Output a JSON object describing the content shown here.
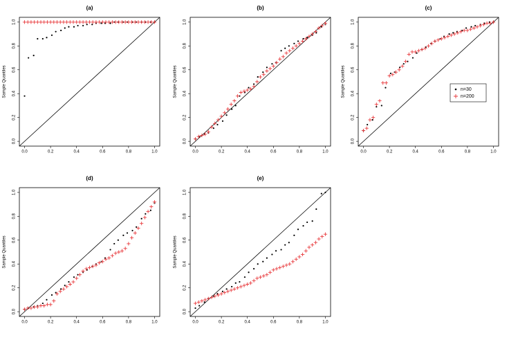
{
  "chart_data": [
    {
      "type": "scatter",
      "title": "(a)",
      "ylabel": "Sample Quantiles",
      "xlim": [
        -0.04,
        1.04
      ],
      "ylim": [
        -0.04,
        1.04
      ],
      "xticks": [
        {
          "value": 0,
          "label": "0.0"
        },
        0.2,
        0.4,
        0.6,
        0.8,
        {
          "value": 1,
          "label": "1.0"
        }
      ],
      "yticks": [
        {
          "value": 0,
          "label": "0.0"
        },
        0.2,
        0.4,
        0.6,
        0.8,
        {
          "value": 1,
          "label": "1.0"
        }
      ],
      "series": [
        {
          "color": "#000000",
          "marker": "dot",
          "x": [
            0.0,
            0.03,
            0.07,
            0.1,
            0.14,
            0.17,
            0.21,
            0.24,
            0.28,
            0.31,
            0.34,
            0.38,
            0.41,
            0.45,
            0.48,
            0.52,
            0.55,
            0.59,
            0.62,
            0.66,
            0.69,
            0.72,
            0.76,
            0.79,
            0.83,
            0.86,
            0.9,
            0.93,
            0.97,
            1.0
          ],
          "values": [
            0.38,
            0.7,
            0.72,
            0.86,
            0.86,
            0.87,
            0.89,
            0.92,
            0.93,
            0.95,
            0.96,
            0.96,
            0.97,
            0.97,
            0.98,
            0.98,
            0.99,
            0.99,
            0.99,
            0.99,
            1.0,
            1.0,
            1.0,
            1.0,
            1.0,
            1.0,
            1.0,
            1.0,
            1.0,
            1.0
          ]
        },
        {
          "color": "#e8383b",
          "marker": "plus",
          "x": [
            0,
            0.025,
            0.05,
            0.075,
            0.1,
            0.125,
            0.15,
            0.175,
            0.2,
            0.225,
            0.25,
            0.275,
            0.3,
            0.325,
            0.35,
            0.375,
            0.4,
            0.425,
            0.45,
            0.475,
            0.5,
            0.525,
            0.55,
            0.575,
            0.6,
            0.625,
            0.65,
            0.675,
            0.7,
            0.725,
            0.75,
            0.775,
            0.8,
            0.825,
            0.85,
            0.875,
            0.9,
            0.925,
            0.95,
            0.975,
            1
          ],
          "values": [
            1,
            1,
            1,
            1,
            1,
            1,
            1,
            1,
            1,
            1,
            1,
            1,
            1,
            1,
            1,
            1,
            1,
            1,
            1,
            1,
            1,
            1,
            1,
            1,
            1,
            1,
            1,
            1,
            1,
            1,
            1,
            1,
            1,
            1,
            1,
            1,
            1,
            1,
            1,
            1,
            1
          ]
        }
      ]
    },
    {
      "type": "scatter",
      "title": "(b)",
      "ylabel": "Sample Quantiles",
      "xlim": [
        -0.04,
        1.04
      ],
      "ylim": [
        -0.04,
        1.04
      ],
      "xticks": [
        {
          "value": 0,
          "label": "0.0"
        },
        0.2,
        0.4,
        0.6,
        0.8,
        {
          "value": 1,
          "label": "1.0"
        }
      ],
      "yticks": [
        {
          "value": 0,
          "label": "0.0"
        },
        0.2,
        0.4,
        0.6,
        0.8,
        {
          "value": 1,
          "label": "1.0"
        }
      ],
      "series": [
        {
          "color": "#000000",
          "marker": "dot",
          "x": [
            0.0,
            0.03,
            0.07,
            0.1,
            0.14,
            0.17,
            0.21,
            0.24,
            0.28,
            0.31,
            0.34,
            0.38,
            0.41,
            0.45,
            0.48,
            0.52,
            0.55,
            0.59,
            0.62,
            0.66,
            0.69,
            0.72,
            0.76,
            0.79,
            0.83,
            0.86,
            0.9,
            0.93,
            0.97,
            1.0
          ],
          "values": [
            0.02,
            0.04,
            0.06,
            0.07,
            0.11,
            0.14,
            0.17,
            0.22,
            0.27,
            0.3,
            0.38,
            0.41,
            0.45,
            0.48,
            0.54,
            0.58,
            0.62,
            0.65,
            0.66,
            0.76,
            0.78,
            0.8,
            0.82,
            0.84,
            0.86,
            0.87,
            0.89,
            0.91,
            0.96,
            0.98
          ]
        },
        {
          "color": "#e8383b",
          "marker": "plus",
          "x": [
            0,
            0.025,
            0.05,
            0.075,
            0.1,
            0.125,
            0.15,
            0.175,
            0.2,
            0.225,
            0.25,
            0.275,
            0.3,
            0.325,
            0.35,
            0.375,
            0.4,
            0.425,
            0.45,
            0.475,
            0.5,
            0.525,
            0.55,
            0.575,
            0.6,
            0.625,
            0.65,
            0.675,
            0.7,
            0.725,
            0.75,
            0.775,
            0.8,
            0.825,
            0.85,
            0.875,
            0.9,
            0.925,
            0.95,
            0.975,
            1
          ],
          "values": [
            0.02,
            0.04,
            0.05,
            0.06,
            0.08,
            0.12,
            0.15,
            0.18,
            0.21,
            0.24,
            0.27,
            0.31,
            0.34,
            0.38,
            0.41,
            0.42,
            0.43,
            0.44,
            0.46,
            0.5,
            0.54,
            0.56,
            0.59,
            0.61,
            0.63,
            0.66,
            0.69,
            0.71,
            0.74,
            0.76,
            0.78,
            0.8,
            0.82,
            0.84,
            0.86,
            0.88,
            0.9,
            0.92,
            0.95,
            0.97,
            0.99
          ]
        }
      ]
    },
    {
      "type": "scatter",
      "title": "(c)",
      "ylabel": "Sample Quantiles",
      "legend": "right",
      "xlim": [
        -0.04,
        1.04
      ],
      "ylim": [
        -0.04,
        1.04
      ],
      "xticks": [
        {
          "value": 0,
          "label": "0.0"
        },
        0.2,
        0.4,
        0.6,
        0.8,
        {
          "value": 1,
          "label": "1.0"
        }
      ],
      "yticks": [
        {
          "value": 0,
          "label": "0.0"
        },
        0.2,
        0.4,
        0.6,
        0.8,
        {
          "value": 1,
          "label": "1.0"
        }
      ],
      "series": [
        {
          "name": "n=30",
          "color": "#000000",
          "marker": "dot",
          "x": [
            0.0,
            0.03,
            0.07,
            0.1,
            0.14,
            0.17,
            0.21,
            0.24,
            0.28,
            0.31,
            0.34,
            0.38,
            0.41,
            0.45,
            0.48,
            0.52,
            0.55,
            0.59,
            0.62,
            0.66,
            0.69,
            0.72,
            0.76,
            0.79,
            0.83,
            0.86,
            0.9,
            0.93,
            0.97,
            1.0
          ],
          "values": [
            0.09,
            0.14,
            0.18,
            0.29,
            0.3,
            0.45,
            0.57,
            0.58,
            0.62,
            0.65,
            0.67,
            0.7,
            0.74,
            0.77,
            0.79,
            0.82,
            0.84,
            0.86,
            0.88,
            0.9,
            0.91,
            0.92,
            0.93,
            0.95,
            0.96,
            0.97,
            0.98,
            0.99,
            1.0,
            1.0
          ]
        },
        {
          "name": "n=200",
          "color": "#e8383b",
          "marker": "plus",
          "x": [
            0,
            0.025,
            0.05,
            0.075,
            0.1,
            0.125,
            0.15,
            0.175,
            0.2,
            0.225,
            0.25,
            0.275,
            0.3,
            0.325,
            0.35,
            0.375,
            0.4,
            0.425,
            0.45,
            0.475,
            0.5,
            0.525,
            0.55,
            0.575,
            0.6,
            0.625,
            0.65,
            0.675,
            0.7,
            0.725,
            0.75,
            0.775,
            0.8,
            0.825,
            0.85,
            0.875,
            0.9,
            0.925,
            0.95,
            0.975,
            1
          ],
          "values": [
            0.09,
            0.11,
            0.18,
            0.2,
            0.31,
            0.34,
            0.49,
            0.49,
            0.55,
            0.56,
            0.58,
            0.6,
            0.63,
            0.67,
            0.73,
            0.75,
            0.75,
            0.76,
            0.77,
            0.78,
            0.8,
            0.82,
            0.84,
            0.85,
            0.86,
            0.87,
            0.88,
            0.89,
            0.9,
            0.91,
            0.92,
            0.93,
            0.93,
            0.94,
            0.95,
            0.96,
            0.97,
            0.98,
            0.99,
            0.99,
            1.0
          ]
        }
      ]
    },
    {
      "type": "scatter",
      "title": "(d)",
      "ylabel": "Sample Quantiles",
      "xlim": [
        -0.04,
        1.04
      ],
      "ylim": [
        -0.04,
        1.04
      ],
      "xticks": [
        {
          "value": 0,
          "label": "0.0"
        },
        0.2,
        0.4,
        0.6,
        0.8,
        {
          "value": 1,
          "label": "1.0"
        }
      ],
      "yticks": [
        {
          "value": 0,
          "label": "0.0"
        },
        0.2,
        0.4,
        0.6,
        0.8,
        {
          "value": 1,
          "label": "1.0"
        }
      ],
      "series": [
        {
          "color": "#000000",
          "marker": "dot",
          "x": [
            0.0,
            0.03,
            0.07,
            0.1,
            0.14,
            0.17,
            0.21,
            0.24,
            0.28,
            0.31,
            0.34,
            0.38,
            0.41,
            0.45,
            0.48,
            0.52,
            0.55,
            0.59,
            0.62,
            0.66,
            0.69,
            0.72,
            0.76,
            0.79,
            0.83,
            0.86,
            0.9,
            0.93,
            0.97,
            1.0
          ],
          "values": [
            0.02,
            0.03,
            0.04,
            0.05,
            0.07,
            0.1,
            0.14,
            0.16,
            0.19,
            0.22,
            0.25,
            0.29,
            0.31,
            0.33,
            0.35,
            0.38,
            0.4,
            0.42,
            0.45,
            0.52,
            0.57,
            0.6,
            0.64,
            0.66,
            0.68,
            0.71,
            0.78,
            0.82,
            0.85,
            0.91
          ]
        },
        {
          "color": "#e8383b",
          "marker": "plus",
          "x": [
            0,
            0.025,
            0.05,
            0.075,
            0.1,
            0.125,
            0.15,
            0.175,
            0.2,
            0.225,
            0.25,
            0.275,
            0.3,
            0.325,
            0.35,
            0.375,
            0.4,
            0.425,
            0.45,
            0.475,
            0.5,
            0.525,
            0.55,
            0.575,
            0.6,
            0.625,
            0.65,
            0.675,
            0.7,
            0.725,
            0.75,
            0.775,
            0.8,
            0.825,
            0.85,
            0.875,
            0.9,
            0.925,
            0.95,
            0.975,
            1
          ],
          "values": [
            0.02,
            0.03,
            0.03,
            0.04,
            0.04,
            0.05,
            0.05,
            0.06,
            0.06,
            0.09,
            0.15,
            0.17,
            0.19,
            0.21,
            0.23,
            0.25,
            0.28,
            0.31,
            0.34,
            0.36,
            0.37,
            0.38,
            0.39,
            0.41,
            0.42,
            0.44,
            0.45,
            0.47,
            0.49,
            0.5,
            0.51,
            0.53,
            0.57,
            0.62,
            0.66,
            0.7,
            0.74,
            0.79,
            0.84,
            0.88,
            0.92
          ]
        }
      ]
    },
    {
      "type": "scatter",
      "title": "(e)",
      "ylabel": "Sample Quantiles",
      "xlim": [
        -0.04,
        1.04
      ],
      "ylim": [
        -0.04,
        1.04
      ],
      "xticks": [
        {
          "value": 0,
          "label": "0.0"
        },
        0.2,
        0.4,
        0.6,
        0.8,
        {
          "value": 1,
          "label": "1.0"
        }
      ],
      "yticks": [
        {
          "value": 0,
          "label": "0.0"
        },
        0.2,
        0.4,
        0.6,
        0.8,
        {
          "value": 1,
          "label": "1.0"
        }
      ],
      "series": [
        {
          "color": "#000000",
          "marker": "dot",
          "x": [
            0.0,
            0.03,
            0.07,
            0.1,
            0.14,
            0.17,
            0.21,
            0.24,
            0.28,
            0.31,
            0.34,
            0.38,
            0.41,
            0.45,
            0.48,
            0.52,
            0.55,
            0.59,
            0.62,
            0.66,
            0.69,
            0.72,
            0.76,
            0.79,
            0.83,
            0.86,
            0.9,
            0.93,
            0.97,
            1.0
          ],
          "values": [
            0.03,
            0.05,
            0.08,
            0.11,
            0.13,
            0.15,
            0.17,
            0.19,
            0.21,
            0.24,
            0.25,
            0.29,
            0.33,
            0.36,
            0.4,
            0.42,
            0.45,
            0.48,
            0.51,
            0.52,
            0.56,
            0.58,
            0.64,
            0.69,
            0.72,
            0.75,
            0.76,
            0.86,
            0.99,
            1.0
          ]
        },
        {
          "color": "#e8383b",
          "marker": "plus",
          "x": [
            0,
            0.025,
            0.05,
            0.075,
            0.1,
            0.125,
            0.15,
            0.175,
            0.2,
            0.225,
            0.25,
            0.275,
            0.3,
            0.325,
            0.35,
            0.375,
            0.4,
            0.425,
            0.45,
            0.475,
            0.5,
            0.525,
            0.55,
            0.575,
            0.6,
            0.625,
            0.65,
            0.675,
            0.7,
            0.725,
            0.75,
            0.775,
            0.8,
            0.825,
            0.85,
            0.875,
            0.9,
            0.925,
            0.95,
            0.975,
            1
          ],
          "values": [
            0.07,
            0.08,
            0.09,
            0.1,
            0.11,
            0.12,
            0.13,
            0.14,
            0.15,
            0.16,
            0.17,
            0.18,
            0.19,
            0.2,
            0.21,
            0.22,
            0.23,
            0.24,
            0.26,
            0.28,
            0.29,
            0.3,
            0.31,
            0.33,
            0.35,
            0.36,
            0.37,
            0.38,
            0.39,
            0.4,
            0.42,
            0.44,
            0.46,
            0.48,
            0.51,
            0.54,
            0.56,
            0.58,
            0.61,
            0.63,
            0.65
          ]
        }
      ]
    }
  ]
}
